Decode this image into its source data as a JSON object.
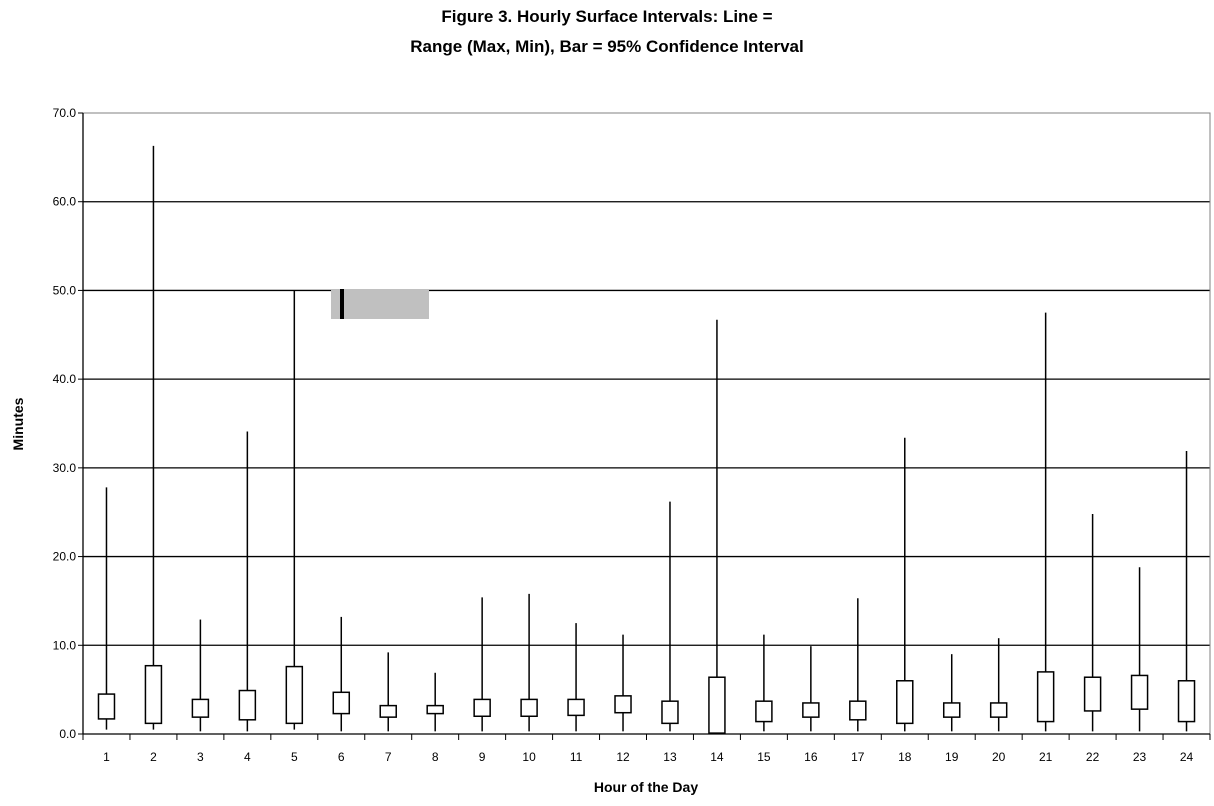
{
  "chart_data": {
    "type": "box",
    "title_line1": "Figure 3. Hourly Surface Intervals: Line =",
    "title_line2": "Range (Max, Min), Bar = 95% Confidence Interval",
    "xlabel": "Hour of the Day",
    "ylabel": "Minutes",
    "ylim": [
      0,
      70
    ],
    "y_ticks": [
      "0.0",
      "10.0",
      "20.0",
      "30.0",
      "40.0",
      "50.0",
      "60.0",
      "70.0"
    ],
    "grid": "horizontal",
    "categories": [
      "1",
      "2",
      "3",
      "4",
      "5",
      "6",
      "7",
      "8",
      "9",
      "10",
      "11",
      "12",
      "13",
      "14",
      "15",
      "16",
      "17",
      "18",
      "19",
      "20",
      "21",
      "22",
      "23",
      "24"
    ],
    "series": [
      {
        "min": 0.5,
        "max": 27.8,
        "low": 1.7,
        "high": 4.5
      },
      {
        "min": 0.5,
        "max": 66.3,
        "low": 1.2,
        "high": 7.7
      },
      {
        "min": 0.3,
        "max": 12.9,
        "low": 1.9,
        "high": 3.9
      },
      {
        "min": 0.3,
        "max": 34.1,
        "low": 1.6,
        "high": 4.9
      },
      {
        "min": 0.5,
        "max": 50.0,
        "low": 1.2,
        "high": 7.6
      },
      {
        "min": 0.3,
        "max": 13.2,
        "low": 2.3,
        "high": 4.7
      },
      {
        "min": 0.3,
        "max": 9.2,
        "low": 1.9,
        "high": 3.2
      },
      {
        "min": 0.3,
        "max": 6.9,
        "low": 2.3,
        "high": 3.2
      },
      {
        "min": 0.3,
        "max": 15.4,
        "low": 2.0,
        "high": 3.9
      },
      {
        "min": 0.3,
        "max": 15.8,
        "low": 2.0,
        "high": 3.9
      },
      {
        "min": 0.3,
        "max": 12.5,
        "low": 2.1,
        "high": 3.9
      },
      {
        "min": 0.3,
        "max": 11.2,
        "low": 2.4,
        "high": 4.3
      },
      {
        "min": 0.3,
        "max": 26.2,
        "low": 1.2,
        "high": 3.7
      },
      {
        "min": 0.1,
        "max": 46.7,
        "low": 0.1,
        "high": 6.4
      },
      {
        "min": 0.3,
        "max": 11.2,
        "low": 1.4,
        "high": 3.7
      },
      {
        "min": 0.3,
        "max": 9.9,
        "low": 1.9,
        "high": 3.5
      },
      {
        "min": 0.3,
        "max": 15.3,
        "low": 1.6,
        "high": 3.7
      },
      {
        "min": 0.3,
        "max": 33.4,
        "low": 1.2,
        "high": 6.0
      },
      {
        "min": 0.3,
        "max": 9.0,
        "low": 1.9,
        "high": 3.5
      },
      {
        "min": 0.3,
        "max": 10.8,
        "low": 1.9,
        "high": 3.5
      },
      {
        "min": 0.3,
        "max": 47.5,
        "low": 1.4,
        "high": 7.0
      },
      {
        "min": 0.3,
        "max": 24.8,
        "low": 2.6,
        "high": 6.4
      },
      {
        "min": 0.3,
        "max": 18.8,
        "low": 2.8,
        "high": 6.6
      },
      {
        "min": 0.3,
        "max": 31.9,
        "low": 1.4,
        "high": 6.0
      }
    ],
    "legend_artifact_color": "#c0c0c0"
  }
}
